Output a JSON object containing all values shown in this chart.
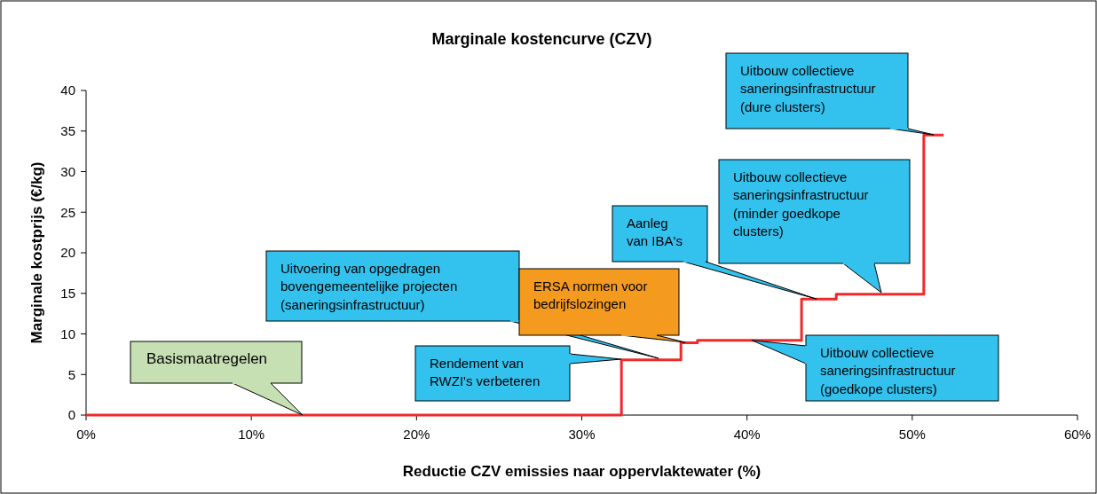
{
  "chart_data": {
    "type": "step",
    "title": "Marginale kostencurve (CZV)",
    "xlabel": "Reductie CZV emissies naar oppervlaktewater (%)",
    "ylabel": "Marginale kostprijs (€/kg)",
    "x": [
      0,
      32.4,
      36.0,
      37.0,
      43.3,
      45.4,
      50.7,
      51.9
    ],
    "series": [
      {
        "color": "#ee2a2a",
        "values": [
          0,
          6.8,
          8.9,
          9.2,
          14.3,
          14.9,
          34.5,
          34.5
        ]
      }
    ],
    "xlim": [
      0,
      60
    ],
    "xticks": [
      {
        "value": 0,
        "label": "0%"
      },
      {
        "value": 10,
        "label": "10%"
      },
      {
        "value": 20,
        "label": "20%"
      },
      {
        "value": 30,
        "label": "30%"
      },
      {
        "value": 40,
        "label": "40%"
      },
      {
        "value": 50,
        "label": "50%"
      },
      {
        "value": 60,
        "label": "60%"
      }
    ],
    "ylim": [
      0,
      40
    ],
    "yticks": [
      0,
      5,
      10,
      15,
      20,
      25,
      30,
      35,
      40
    ],
    "grid": false,
    "marker": "none",
    "line_style": "solid",
    "annotations": [
      {
        "text": "Basismaatregelen",
        "x": 13.1,
        "y": 0
      },
      "Rendement van\nRWZI's verbeteren",
      "Uitvoering van opgedragen\nbovengemeentelijke projecten\n(saneringsinfrastructuur)",
      "ERSA normen voor\nbedrijfslozingen",
      {
        "text": "Uitbouw collectieve\nsaneringsinfrastructuur\n(goedkope clusters)",
        "x": 40.3,
        "y": 9.2
      },
      {
        "text": "Aanleg\nvan IBA's",
        "x": 44.2,
        "y": 14.3
      },
      "Uitbouw collectieve\nsaneringsinfrastructuur\n(minder goedkope\nclusters)",
      "Uitbouw collectieve\nsaneringsinfrastructuur\n(dure clusters)"
    ]
  }
}
